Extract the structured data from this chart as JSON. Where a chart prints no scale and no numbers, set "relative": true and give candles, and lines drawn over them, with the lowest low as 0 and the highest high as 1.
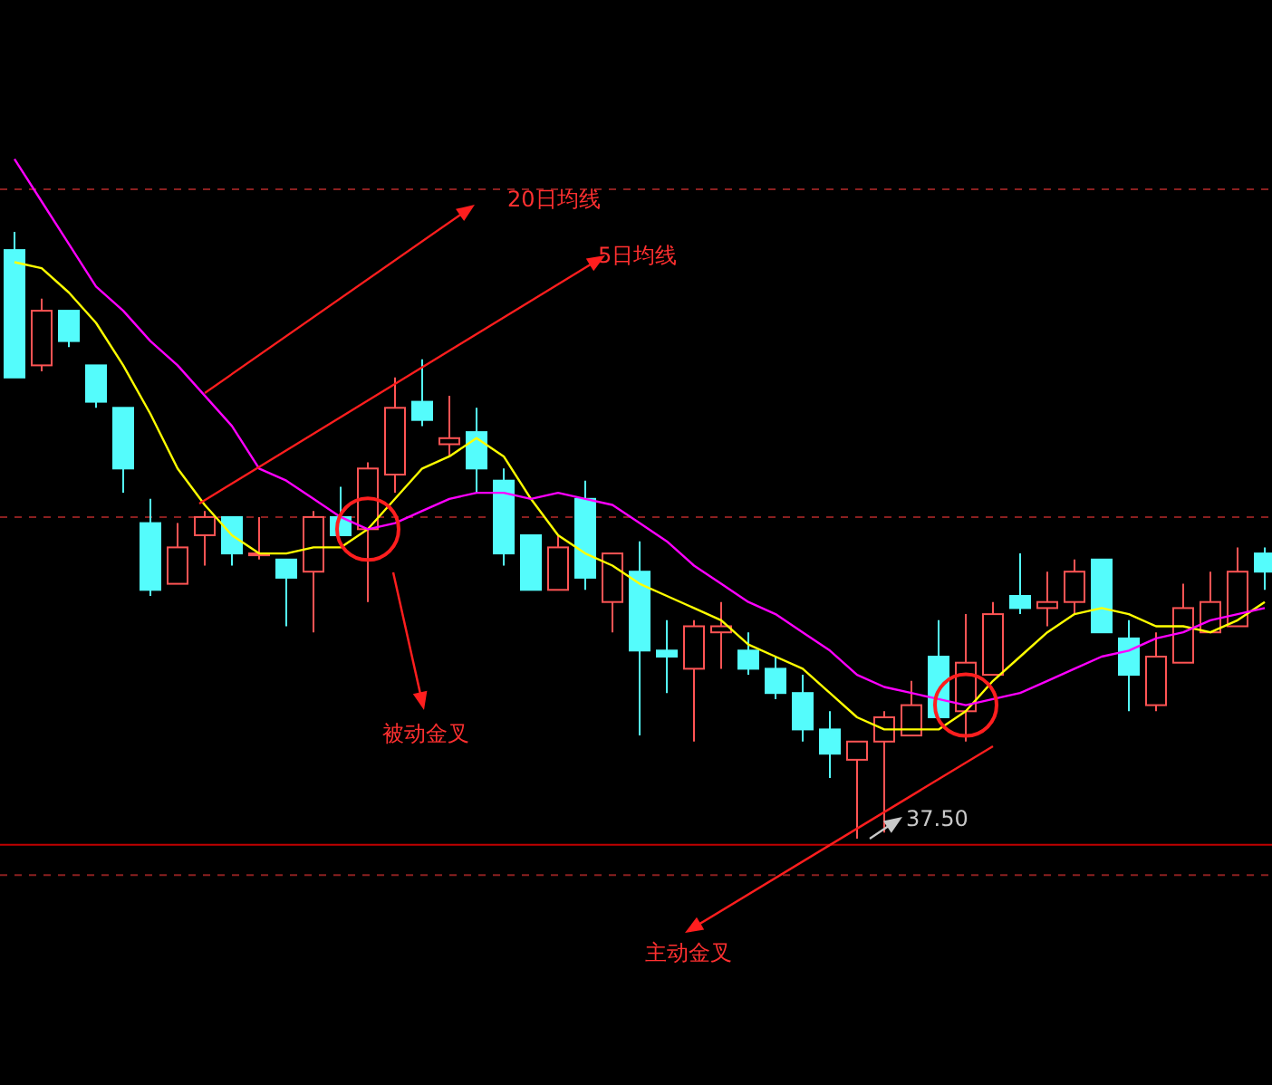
{
  "chart_data": {
    "type": "candlestick",
    "relative": true,
    "categories": [
      null,
      null,
      null,
      null,
      null,
      null,
      null,
      null,
      null,
      null,
      null,
      null,
      null,
      null,
      null,
      null,
      null,
      null,
      null,
      null,
      null,
      null,
      null,
      null,
      null,
      null,
      null,
      null,
      null,
      null,
      null,
      null,
      null,
      null,
      null,
      null,
      null,
      null,
      null,
      null,
      null,
      null,
      null,
      null,
      null,
      null,
      null
    ],
    "ohlc": [
      [
        0.97,
        1,
        0.76,
        0.76
      ],
      [
        0.78,
        0.89,
        0.77,
        0.87
      ],
      [
        0.87,
        0.87,
        0.81,
        0.82
      ],
      [
        0.78,
        0.78,
        0.71,
        0.72
      ],
      [
        0.71,
        0.71,
        0.57,
        0.61
      ],
      [
        0.52,
        0.56,
        0.4,
        0.41
      ],
      [
        0.42,
        0.52,
        0.42,
        0.48
      ],
      [
        0.5,
        0.54,
        0.45,
        0.53
      ],
      [
        0.53,
        0.53,
        0.45,
        0.47
      ],
      [
        0.47,
        0.53,
        0.46,
        0.47
      ],
      [
        0.46,
        0.46,
        0.35,
        0.43
      ],
      [
        0.44,
        0.54,
        0.34,
        0.53
      ],
      [
        0.53,
        0.58,
        0.5,
        0.5
      ],
      [
        0.51,
        0.62,
        0.39,
        0.61
      ],
      [
        0.6,
        0.76,
        0.57,
        0.71
      ],
      [
        0.72,
        0.79,
        0.68,
        0.69
      ],
      [
        0.65,
        0.73,
        0.63,
        0.66
      ],
      [
        0.67,
        0.71,
        0.57,
        0.61
      ],
      [
        0.59,
        0.61,
        0.45,
        0.47
      ],
      [
        0.5,
        0.5,
        0.41,
        0.41
      ],
      [
        0.41,
        0.5,
        0.41,
        0.48
      ],
      [
        0.56,
        0.59,
        0.41,
        0.43
      ],
      [
        0.39,
        0.47,
        0.34,
        0.47
      ],
      [
        0.44,
        0.49,
        0.17,
        0.31
      ],
      [
        0.31,
        0.36,
        0.24,
        0.3
      ],
      [
        0.28,
        0.36,
        0.16,
        0.35
      ],
      [
        0.34,
        0.39,
        0.28,
        0.35
      ],
      [
        0.31,
        0.34,
        0.27,
        0.28
      ],
      [
        0.28,
        0.3,
        0.23,
        0.24
      ],
      [
        0.24,
        0.27,
        0.16,
        0.18
      ],
      [
        0.18,
        0.21,
        0.1,
        0.14
      ],
      [
        0.13,
        0.16,
        0,
        0.16
      ],
      [
        0.16,
        0.21,
        0.01,
        0.2
      ],
      [
        0.17,
        0.26,
        0.17,
        0.22
      ],
      [
        0.3,
        0.36,
        0.2,
        0.2
      ],
      [
        0.21,
        0.37,
        0.16,
        0.29
      ],
      [
        0.27,
        0.39,
        0.27,
        0.37
      ],
      [
        0.4,
        0.47,
        0.37,
        0.38
      ],
      [
        0.38,
        0.44,
        0.35,
        0.39
      ],
      [
        0.39,
        0.46,
        0.37,
        0.44
      ],
      [
        0.46,
        0.46,
        0.34,
        0.34
      ],
      [
        0.33,
        0.36,
        0.21,
        0.27
      ],
      [
        0.22,
        0.34,
        0.21,
        0.3
      ],
      [
        0.29,
        0.42,
        0.29,
        0.38
      ],
      [
        0.34,
        0.44,
        0.34,
        0.39
      ],
      [
        0.35,
        0.48,
        0.35,
        0.44
      ],
      [
        0.47,
        0.48,
        0.41,
        0.44
      ]
    ],
    "series": [
      {
        "type": "line",
        "color": "#ffff00",
        "values": [
          0.95,
          0.94,
          0.9,
          0.85,
          0.78,
          0.7,
          0.61,
          0.55,
          0.5,
          0.47,
          0.47,
          0.48,
          0.48,
          0.51,
          0.56,
          0.61,
          0.63,
          0.66,
          0.63,
          0.56,
          0.5,
          0.47,
          0.45,
          0.42,
          0.4,
          0.38,
          0.36,
          0.32,
          0.3,
          0.28,
          0.24,
          0.2,
          0.18,
          0.18,
          0.18,
          0.21,
          0.26,
          0.3,
          0.34,
          0.37,
          0.38,
          0.37,
          0.35,
          0.35,
          0.34,
          0.36,
          0.39
        ]
      },
      {
        "type": "line",
        "color": "#ff00ff",
        "values": [
          1.12,
          1.05,
          0.98,
          0.91,
          0.87,
          0.82,
          0.78,
          0.73,
          0.68,
          0.61,
          0.59,
          0.56,
          0.53,
          0.51,
          0.52,
          0.54,
          0.56,
          0.57,
          0.57,
          0.56,
          0.57,
          0.56,
          0.55,
          0.52,
          0.49,
          0.45,
          0.42,
          0.39,
          0.37,
          0.34,
          0.31,
          0.27,
          0.25,
          0.24,
          0.23,
          0.22,
          0.23,
          0.24,
          0.26,
          0.28,
          0.3,
          0.31,
          0.33,
          0.34,
          0.36,
          0.37,
          0.38
        ]
      }
    ],
    "ref_lines": [
      {
        "axis": "y",
        "value": 1.07,
        "color": "#8b2020",
        "line_style": "dashed"
      },
      {
        "axis": "y",
        "value": 0.53,
        "color": "#8b2020",
        "line_style": "dashed"
      },
      {
        "axis": "y",
        "value": -0.01,
        "color": "#c00000",
        "line_style": "solid"
      },
      {
        "axis": "y",
        "value": -0.06,
        "color": "#8b2020",
        "line_style": "dashed"
      }
    ],
    "annotations": [
      "20日均线",
      "5日均线",
      "被动金叉",
      "主动金叉",
      {
        "text": "37.50",
        "y": 0
      }
    ]
  }
}
